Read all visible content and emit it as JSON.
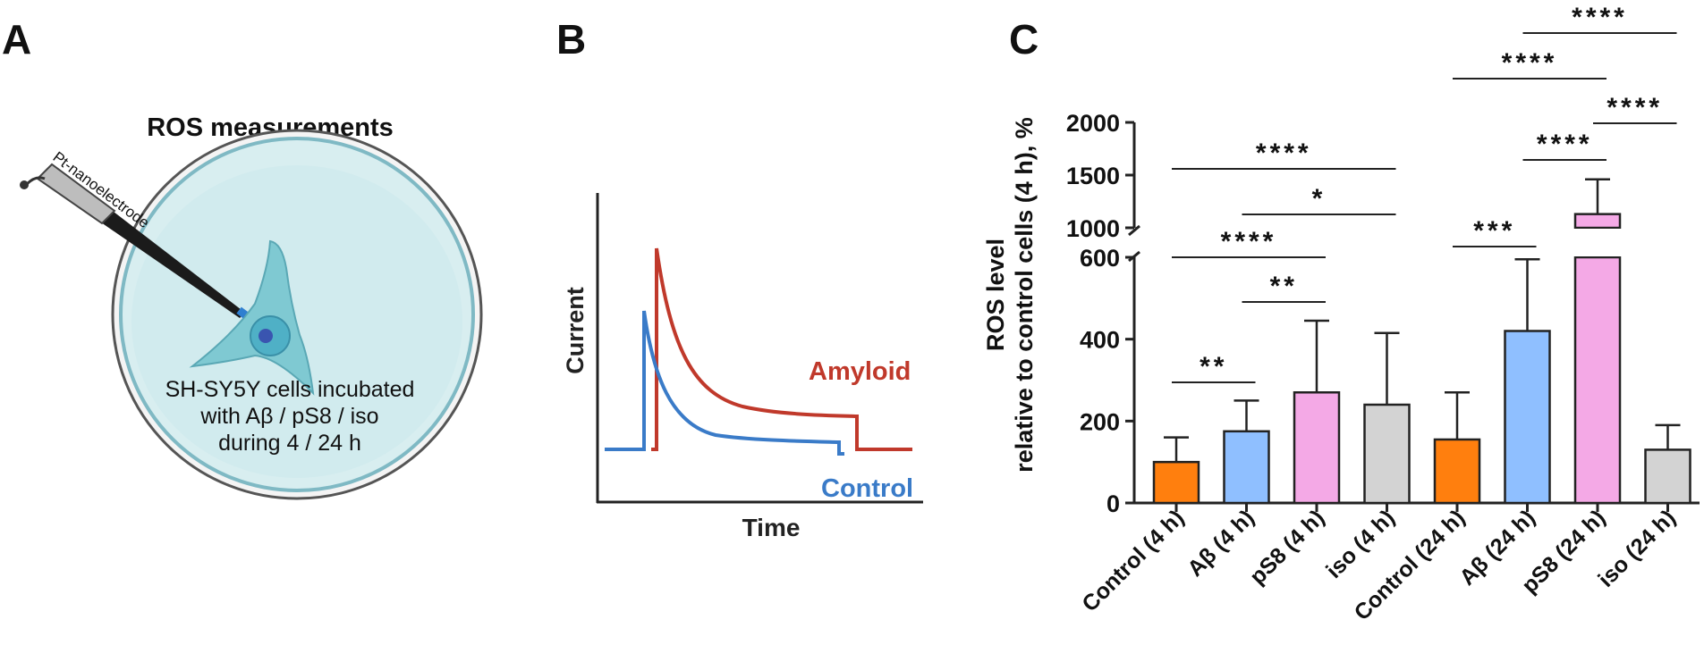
{
  "panels": {
    "a": "A",
    "b": "B",
    "c": "C"
  },
  "panel_a": {
    "title": "ROS measurements",
    "electrode_label": "Pt-nanoelectrode",
    "caption_lines": [
      "SH-SY5Y cells incubated",
      "with Aβ / pS8 / iso",
      "during 4 / 24 h"
    ]
  },
  "panel_b": {
    "ylabel": "Current",
    "xlabel": "Time",
    "series": [
      {
        "name": "Amyloid",
        "color": "#c0392b"
      },
      {
        "name": "Control",
        "color": "#3a7bc8"
      }
    ]
  },
  "chart_data": {
    "type": "bar",
    "ylabel_line1": "ROS level",
    "ylabel_line2": "relative to control cells (4 h), %",
    "categories": [
      "Control (4 h)",
      "Aβ (4 h)",
      "pS8 (4 h)",
      "iso (4 h)",
      "Control (24 h)",
      "Aβ (24 h)",
      "pS8 (24 h)",
      "iso (24 h)"
    ],
    "values": [
      100,
      175,
      270,
      240,
      155,
      420,
      1130,
      130
    ],
    "errors": [
      60,
      75,
      175,
      175,
      115,
      175,
      330,
      60
    ],
    "colors": [
      "#ff7f0e",
      "#8fbfff",
      "#f4a9e6",
      "#d3d3d3",
      "#ff7f0e",
      "#8fbfff",
      "#f4a9e6",
      "#d3d3d3"
    ],
    "y_axis_break": {
      "lower_range": [
        0,
        600
      ],
      "upper_range": [
        1000,
        2000
      ]
    },
    "lower_ticks": [
      0,
      200,
      400,
      600
    ],
    "upper_ticks": [
      1000,
      1500,
      2000
    ],
    "significance": [
      {
        "from": 0,
        "to": 1,
        "label": "**"
      },
      {
        "from": 1,
        "to": 2,
        "label": "**"
      },
      {
        "from": 0,
        "to": 2,
        "label": "****"
      },
      {
        "from": 1,
        "to": 3,
        "label": "*"
      },
      {
        "from": 0,
        "to": 3,
        "label": "****"
      },
      {
        "from": 4,
        "to": 5,
        "label": "***"
      },
      {
        "from": 5,
        "to": 6,
        "label": "****"
      },
      {
        "from": 6,
        "to": 7,
        "label": "****"
      },
      {
        "from": 4,
        "to": 6,
        "label": "****"
      },
      {
        "from": 5,
        "to": 7,
        "label": "****"
      }
    ]
  }
}
